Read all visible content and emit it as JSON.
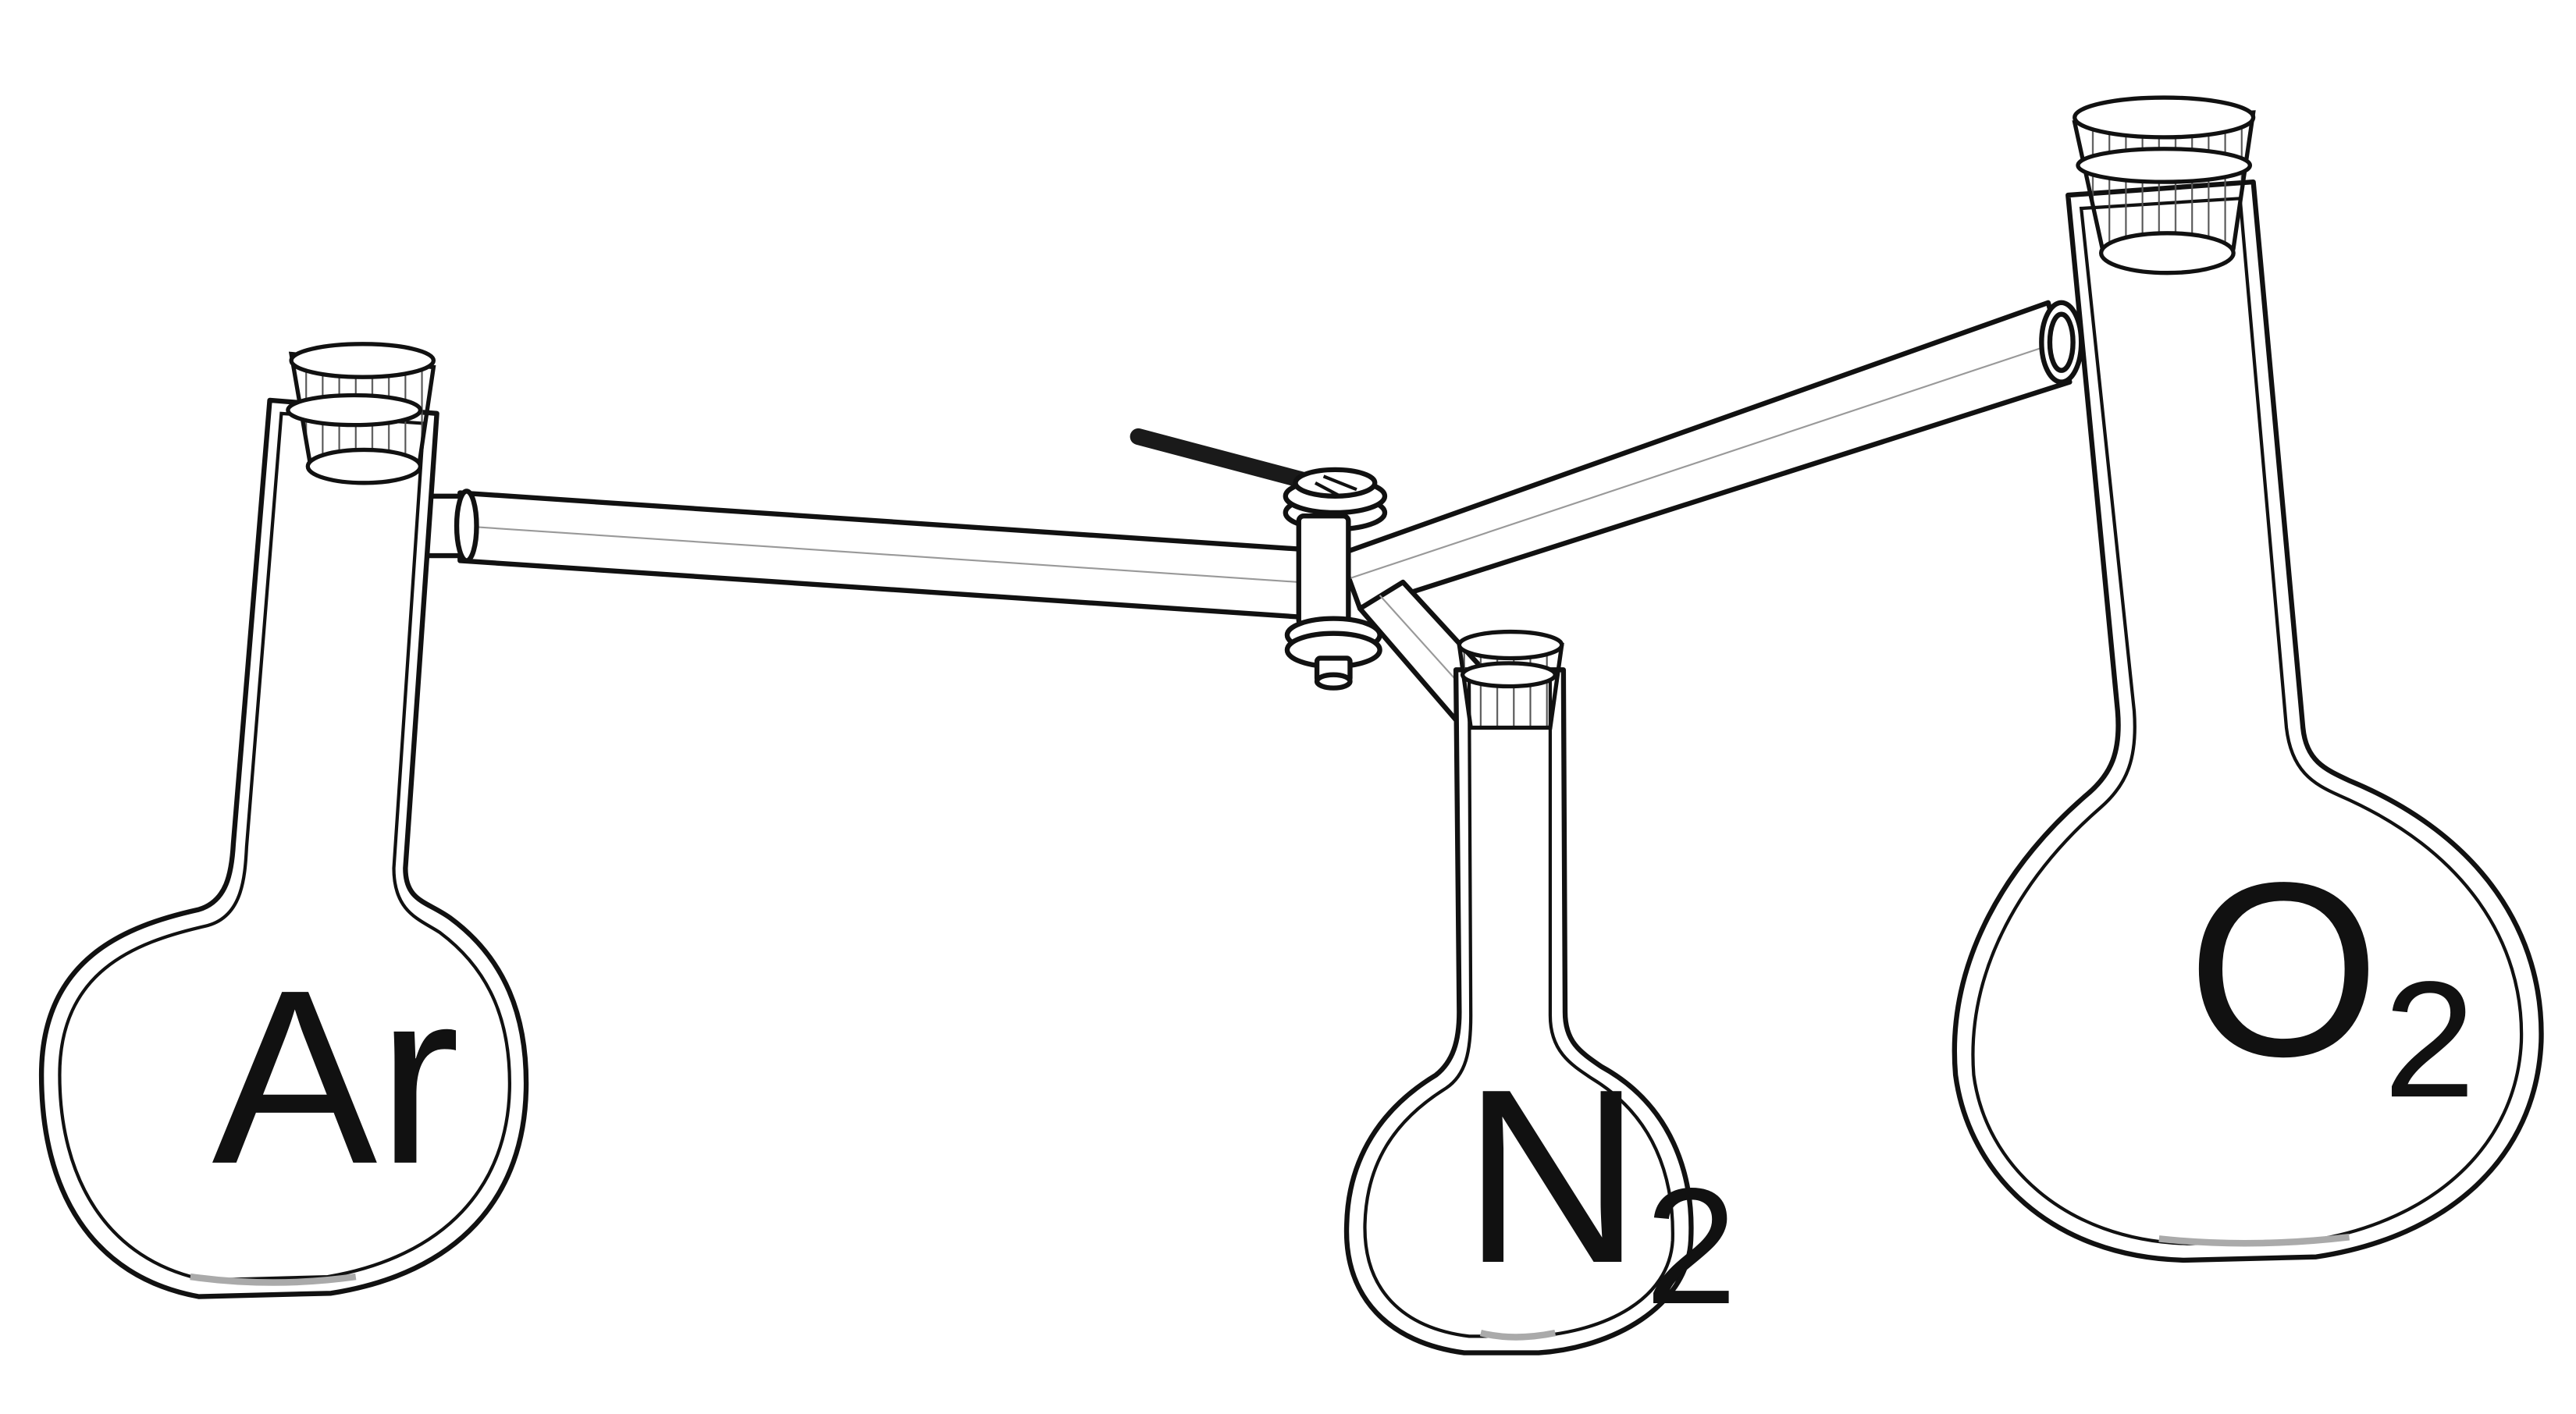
{
  "flasks": [
    {
      "id": "ar",
      "label": "Ar",
      "subscript": ""
    },
    {
      "id": "n2",
      "label": "N",
      "subscript": "2"
    },
    {
      "id": "o2",
      "label": "O",
      "subscript": "2"
    }
  ],
  "colors": {
    "stroke": "#111111",
    "background": "#ffffff",
    "handle": "#1a1a1a"
  }
}
